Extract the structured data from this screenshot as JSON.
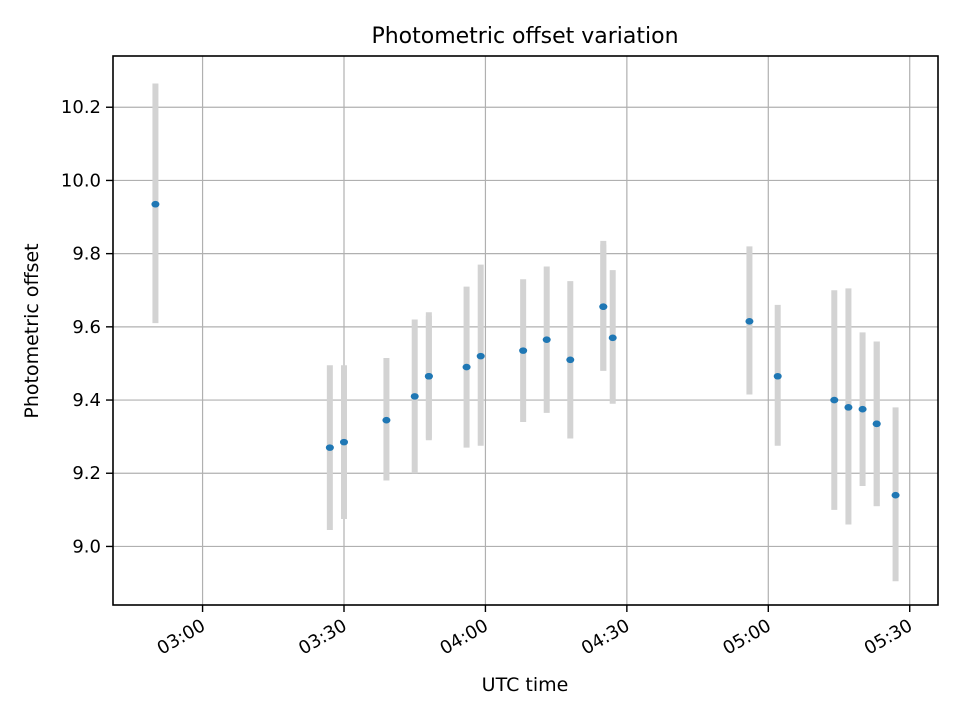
{
  "chart_data": {
    "type": "scatter",
    "title": "Photometric offset variation",
    "xlabel": "UTC time",
    "ylabel": "Photometric offset",
    "x_unit": "UTC time (hh:mm)",
    "xlim": [
      "02:41",
      "05:36"
    ],
    "ylim": [
      8.84,
      10.34
    ],
    "x_ticks": [
      "03:00",
      "03:30",
      "04:00",
      "04:30",
      "05:00",
      "05:30"
    ],
    "y_ticks": [
      "9.0",
      "9.2",
      "9.4",
      "9.6",
      "9.8",
      "10.0",
      "10.2"
    ],
    "grid": true,
    "marker_color": "#1f77b4",
    "errorbar_color": "#d3d3d3",
    "points": [
      {
        "x": "02:50",
        "y": 9.935,
        "ylow": 9.61,
        "yhigh": 10.265
      },
      {
        "x": "03:27",
        "y": 9.27,
        "ylow": 9.045,
        "yhigh": 9.495
      },
      {
        "x": "03:30",
        "y": 9.285,
        "ylow": 9.075,
        "yhigh": 9.495
      },
      {
        "x": "03:39",
        "y": 9.345,
        "ylow": 9.18,
        "yhigh": 9.515
      },
      {
        "x": "03:45",
        "y": 9.41,
        "ylow": 9.2,
        "yhigh": 9.62
      },
      {
        "x": "03:48",
        "y": 9.465,
        "ylow": 9.29,
        "yhigh": 9.63
      },
      {
        "x": "03:48",
        "y": 9.465,
        "ylow": 9.295,
        "yhigh": 9.64
      },
      {
        "x": "03:56",
        "y": 9.49,
        "ylow": 9.27,
        "yhigh": 9.71
      },
      {
        "x": "03:59",
        "y": 9.52,
        "ylow": 9.275,
        "yhigh": 9.77
      },
      {
        "x": "04:08",
        "y": 9.535,
        "ylow": 9.34,
        "yhigh": 9.73
      },
      {
        "x": "04:13",
        "y": 9.565,
        "ylow": 9.365,
        "yhigh": 9.765
      },
      {
        "x": "04:18",
        "y": 9.51,
        "ylow": 9.295,
        "yhigh": 9.725
      },
      {
        "x": "04:25",
        "y": 9.655,
        "ylow": 9.48,
        "yhigh": 9.835
      },
      {
        "x": "04:25",
        "y": 9.655,
        "ylow": 9.48,
        "yhigh": 9.825
      },
      {
        "x": "04:27",
        "y": 9.57,
        "ylow": 9.39,
        "yhigh": 9.755
      },
      {
        "x": "04:56",
        "y": 9.615,
        "ylow": 9.415,
        "yhigh": 9.82
      },
      {
        "x": "05:02",
        "y": 9.465,
        "ylow": 9.275,
        "yhigh": 9.66
      },
      {
        "x": "05:14",
        "y": 9.4,
        "ylow": 9.1,
        "yhigh": 9.7
      },
      {
        "x": "05:17",
        "y": 9.38,
        "ylow": 9.06,
        "yhigh": 9.705
      },
      {
        "x": "05:20",
        "y": 9.375,
        "ylow": 9.165,
        "yhigh": 9.585
      },
      {
        "x": "05:23",
        "y": 9.335,
        "ylow": 9.11,
        "yhigh": 9.56
      },
      {
        "x": "05:23",
        "y": 9.335,
        "ylow": 9.11,
        "yhigh": 9.56
      },
      {
        "x": "05:27",
        "y": 9.14,
        "ylow": 8.905,
        "yhigh": 9.38
      }
    ]
  }
}
